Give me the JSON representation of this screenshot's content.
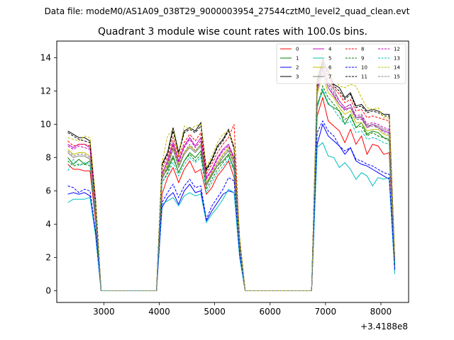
{
  "suptitle": "Data file: modeM0/AS1A09_038T29_9000003954_27544cztM0_level2_quad_clean.evt",
  "chart_data": {
    "type": "line",
    "title": "Quadrant 3 module wise count rates with 100.0s bins.",
    "xlabel": "",
    "ylabel": "",
    "x_offset_label": "+3.4188e8",
    "xlim": [
      2150,
      8500
    ],
    "ylim": [
      -0.7,
      15.0
    ],
    "xticks": [
      3000,
      4000,
      5000,
      6000,
      7000,
      8000
    ],
    "yticks": [
      0,
      2,
      4,
      6,
      8,
      10,
      12,
      14
    ],
    "legend_position": "top-right",
    "grid": false,
    "x": [
      2350,
      2450,
      2550,
      2650,
      2750,
      2850,
      2950,
      3050,
      3150,
      3250,
      3350,
      3450,
      3550,
      3650,
      3750,
      3850,
      3950,
      4050,
      4150,
      4250,
      4350,
      4450,
      4550,
      4650,
      4750,
      4850,
      4950,
      5050,
      5150,
      5250,
      5350,
      5450,
      5550,
      5650,
      5750,
      5850,
      5950,
      6050,
      6150,
      6250,
      6350,
      6450,
      6550,
      6650,
      6750,
      6850,
      6950,
      7050,
      7150,
      7250,
      7350,
      7450,
      7550,
      7650,
      7750,
      7850,
      7950,
      8050,
      8150,
      8250
    ],
    "series": [
      {
        "name": "0",
        "color": "#ff0000",
        "dash": false,
        "values": [
          7.6,
          7.3,
          7.3,
          7.2,
          7.2,
          4.2,
          0,
          0,
          0,
          0,
          0,
          0,
          0,
          0,
          0,
          0,
          0,
          5.8,
          6.8,
          7.4,
          6.5,
          7.3,
          7.8,
          7.1,
          7.3,
          5.8,
          6.2,
          6.9,
          7.3,
          7.8,
          6.8,
          2.6,
          0,
          0,
          0,
          0,
          0,
          0,
          0,
          0,
          0,
          0,
          0,
          0,
          0,
          10.5,
          11.6,
          10.2,
          9.9,
          9.6,
          8.9,
          9.7,
          8.8,
          9.3,
          8.2,
          8.8,
          8.7,
          8.2,
          8.3,
          1.5
        ]
      },
      {
        "name": "1",
        "color": "#008000",
        "dash": false,
        "values": [
          8.0,
          7.6,
          7.9,
          7.6,
          7.8,
          4.6,
          0,
          0,
          0,
          0,
          0,
          0,
          0,
          0,
          0,
          0,
          0,
          6.8,
          7.3,
          8.1,
          7.1,
          7.8,
          8.3,
          8.0,
          8.4,
          6.4,
          7.0,
          7.5,
          7.8,
          8.2,
          7.3,
          2.9,
          0,
          0,
          0,
          0,
          0,
          0,
          0,
          0,
          0,
          0,
          0,
          0,
          0,
          11.2,
          12.0,
          11.2,
          11.0,
          10.8,
          10.0,
          10.6,
          9.8,
          10.1,
          9.4,
          9.6,
          9.5,
          9.2,
          9.1,
          1.6
        ]
      },
      {
        "name": "2",
        "color": "#0000ff",
        "dash": false,
        "values": [
          5.8,
          5.9,
          5.8,
          5.9,
          5.7,
          3.5,
          0,
          0,
          0,
          0,
          0,
          0,
          0,
          0,
          0,
          0,
          0,
          5.0,
          5.6,
          5.9,
          5.2,
          6.0,
          6.4,
          5.9,
          6.0,
          4.2,
          4.8,
          5.3,
          5.8,
          6.0,
          5.9,
          2.1,
          0,
          0,
          0,
          0,
          0,
          0,
          0,
          0,
          0,
          0,
          0,
          0,
          0,
          8.8,
          10.0,
          9.3,
          9.0,
          8.7,
          8.2,
          8.6,
          7.8,
          7.6,
          7.5,
          7.3,
          7.1,
          6.9,
          6.7,
          1.2
        ]
      },
      {
        "name": "3",
        "color": "#000000",
        "dash": false,
        "values": [
          9.6,
          9.4,
          9.2,
          9.2,
          9.0,
          5.5,
          0,
          0,
          0,
          0,
          0,
          0,
          0,
          0,
          0,
          0,
          0,
          7.6,
          8.3,
          9.8,
          8.3,
          9.6,
          9.8,
          9.6,
          10.1,
          7.3,
          7.9,
          8.7,
          9.1,
          9.7,
          8.6,
          3.1,
          0,
          0,
          0,
          0,
          0,
          0,
          0,
          0,
          0,
          0,
          0,
          0,
          0,
          12.6,
          13.9,
          13.2,
          12.4,
          12.2,
          11.6,
          11.9,
          11.1,
          11.2,
          10.8,
          10.9,
          10.8,
          10.6,
          10.6,
          1.9
        ]
      },
      {
        "name": "4",
        "color": "#bf00bf",
        "dash": false,
        "values": [
          8.8,
          8.6,
          8.8,
          8.8,
          8.6,
          5.1,
          0,
          0,
          0,
          0,
          0,
          0,
          0,
          0,
          0,
          0,
          0,
          7.0,
          7.8,
          8.9,
          7.8,
          8.7,
          9.2,
          8.7,
          9.2,
          6.8,
          7.3,
          8.0,
          8.5,
          8.8,
          8.0,
          2.9,
          0,
          0,
          0,
          0,
          0,
          0,
          0,
          0,
          0,
          0,
          0,
          0,
          0,
          12.0,
          13.3,
          12.2,
          11.7,
          11.2,
          10.9,
          11.0,
          10.4,
          10.4,
          9.8,
          10.0,
          9.8,
          9.6,
          9.5,
          1.8
        ]
      },
      {
        "name": "5",
        "color": "#00bfbf",
        "dash": false,
        "values": [
          5.3,
          5.5,
          5.5,
          5.5,
          5.6,
          3.3,
          0,
          0,
          0,
          0,
          0,
          0,
          0,
          0,
          0,
          0,
          0,
          5.2,
          5.4,
          5.6,
          5.1,
          5.7,
          5.9,
          5.7,
          5.8,
          4.1,
          4.6,
          5.0,
          5.5,
          6.1,
          5.9,
          2.0,
          0,
          0,
          0,
          0,
          0,
          0,
          0,
          0,
          0,
          0,
          0,
          0,
          0,
          8.6,
          8.9,
          8.1,
          8.0,
          7.4,
          7.7,
          7.3,
          6.7,
          7.1,
          6.9,
          6.3,
          6.8,
          6.7,
          6.8,
          1.0
        ]
      },
      {
        "name": "6",
        "color": "#bfbf00",
        "dash": false,
        "values": [
          8.5,
          8.2,
          8.3,
          8.3,
          8.1,
          4.9,
          0,
          0,
          0,
          0,
          0,
          0,
          0,
          0,
          0,
          0,
          0,
          6.9,
          7.6,
          8.7,
          7.6,
          8.3,
          8.7,
          8.4,
          8.8,
          6.5,
          7.1,
          7.7,
          8.2,
          8.6,
          7.8,
          2.8,
          0,
          0,
          0,
          0,
          0,
          0,
          0,
          0,
          0,
          0,
          0,
          0,
          0,
          11.8,
          13.0,
          11.9,
          11.6,
          11.0,
          10.6,
          10.8,
          10.1,
          10.1,
          9.6,
          9.7,
          9.7,
          9.4,
          9.3,
          1.8
        ]
      },
      {
        "name": "7",
        "color": "#808080",
        "dash": false,
        "values": [
          8.3,
          8.0,
          8.1,
          8.1,
          7.9,
          4.7,
          0,
          0,
          0,
          0,
          0,
          0,
          0,
          0,
          0,
          0,
          0,
          6.7,
          7.4,
          8.5,
          7.4,
          8.2,
          8.6,
          8.3,
          8.7,
          6.3,
          6.9,
          7.5,
          8.0,
          8.4,
          7.6,
          2.7,
          0,
          0,
          0,
          0,
          0,
          0,
          0,
          0,
          0,
          0,
          0,
          0,
          0,
          12.3,
          13.6,
          12.5,
          12.1,
          11.4,
          11.0,
          11.2,
          10.4,
          10.5,
          9.9,
          10.0,
          9.9,
          9.7,
          9.6,
          1.8
        ]
      },
      {
        "name": "8",
        "color": "#ff0000",
        "dash": true,
        "values": [
          9.0,
          8.7,
          8.8,
          8.8,
          8.7,
          5.2,
          0,
          0,
          0,
          0,
          0,
          0,
          0,
          0,
          0,
          0,
          0,
          7.3,
          8.0,
          9.2,
          8.0,
          8.9,
          9.4,
          9.0,
          9.5,
          7.0,
          7.6,
          8.3,
          8.8,
          9.2,
          10.0,
          3.0,
          0,
          0,
          0,
          0,
          0,
          0,
          0,
          0,
          0,
          0,
          0,
          0,
          0,
          12.4,
          13.8,
          12.8,
          12.2,
          11.8,
          11.3,
          11.5,
          10.8,
          10.9,
          10.4,
          10.5,
          10.4,
          10.3,
          10.2,
          1.9
        ]
      },
      {
        "name": "9",
        "color": "#008000",
        "dash": true,
        "values": [
          7.8,
          7.5,
          7.6,
          7.6,
          7.5,
          4.5,
          0,
          0,
          0,
          0,
          0,
          0,
          0,
          0,
          0,
          0,
          0,
          6.5,
          7.1,
          8.0,
          7.1,
          7.8,
          8.2,
          7.8,
          8.2,
          6.1,
          6.7,
          7.3,
          7.7,
          8.1,
          7.4,
          2.6,
          0,
          0,
          0,
          0,
          0,
          0,
          0,
          0,
          0,
          0,
          0,
          0,
          0,
          11.0,
          12.3,
          11.6,
          11.2,
          10.8,
          10.3,
          10.5,
          9.8,
          9.9,
          9.3,
          9.5,
          9.3,
          9.2,
          9.0,
          1.7
        ]
      },
      {
        "name": "10",
        "color": "#0000ff",
        "dash": true,
        "values": [
          6.3,
          6.2,
          5.9,
          6.1,
          6.0,
          3.6,
          0,
          0,
          0,
          0,
          0,
          0,
          0,
          0,
          0,
          0,
          0,
          5.3,
          5.9,
          6.4,
          5.6,
          6.3,
          6.7,
          6.2,
          6.3,
          4.3,
          5.1,
          5.6,
          6.1,
          6.8,
          6.6,
          2.2,
          0,
          0,
          0,
          0,
          0,
          0,
          0,
          0,
          0,
          0,
          0,
          0,
          0,
          9.5,
          10.2,
          9.6,
          9.3,
          8.7,
          8.4,
          8.6,
          7.9,
          7.8,
          7.6,
          7.5,
          7.3,
          7.1,
          7.0,
          1.3
        ]
      },
      {
        "name": "11",
        "color": "#000000",
        "dash": true,
        "values": [
          9.5,
          9.3,
          9.1,
          9.0,
          8.9,
          5.4,
          0,
          0,
          0,
          0,
          0,
          0,
          0,
          0,
          0,
          0,
          0,
          7.5,
          8.2,
          9.6,
          8.2,
          9.5,
          9.7,
          9.5,
          9.9,
          7.2,
          7.8,
          8.6,
          9.0,
          9.6,
          8.5,
          3.1,
          0,
          0,
          0,
          0,
          0,
          0,
          0,
          0,
          0,
          0,
          0,
          0,
          0,
          12.5,
          13.7,
          13.0,
          12.3,
          12.0,
          11.5,
          11.8,
          11.0,
          11.1,
          10.7,
          10.8,
          10.7,
          10.5,
          10.5,
          1.9
        ]
      },
      {
        "name": "12",
        "color": "#bf00bf",
        "dash": true,
        "values": [
          8.7,
          8.5,
          8.7,
          8.6,
          8.5,
          5.0,
          0,
          0,
          0,
          0,
          0,
          0,
          0,
          0,
          0,
          0,
          0,
          7.1,
          7.7,
          8.8,
          7.7,
          8.6,
          9.1,
          8.6,
          9.0,
          6.7,
          7.2,
          7.9,
          8.4,
          8.7,
          7.9,
          2.8,
          0,
          0,
          0,
          0,
          0,
          0,
          0,
          0,
          0,
          0,
          0,
          0,
          0,
          12.2,
          13.4,
          12.4,
          11.9,
          11.4,
          11.0,
          11.2,
          10.5,
          10.6,
          10.0,
          10.1,
          10.0,
          9.8,
          9.7,
          1.8
        ]
      },
      {
        "name": "13",
        "color": "#00bfbf",
        "dash": true,
        "values": [
          7.2,
          7.9,
          7.5,
          7.7,
          7.6,
          4.5,
          0,
          0,
          0,
          0,
          0,
          0,
          0,
          0,
          0,
          0,
          0,
          6.5,
          7.0,
          7.7,
          6.9,
          7.6,
          8.0,
          7.7,
          8.0,
          5.9,
          6.5,
          7.1,
          7.5,
          7.9,
          7.2,
          2.6,
          0,
          0,
          0,
          0,
          0,
          0,
          0,
          0,
          0,
          0,
          0,
          0,
          0,
          11.0,
          12.1,
          11.3,
          10.9,
          10.4,
          10.0,
          10.2,
          9.5,
          9.6,
          9.1,
          9.2,
          9.1,
          8.9,
          8.8,
          1.6
        ]
      },
      {
        "name": "14",
        "color": "#bfbf00",
        "dash": true,
        "values": [
          9.2,
          9.1,
          9.0,
          9.3,
          9.2,
          5.6,
          0,
          0,
          0,
          0,
          0,
          0,
          0,
          0,
          0,
          0,
          0,
          7.7,
          9.3,
          9.7,
          8.1,
          9.9,
          9.7,
          9.9,
          10.0,
          7.4,
          8.1,
          8.9,
          9.4,
          9.6,
          8.7,
          3.2,
          0,
          0,
          0,
          0,
          0,
          0,
          0,
          0,
          0,
          0,
          0,
          0,
          0,
          13.1,
          14.3,
          13.5,
          12.8,
          12.3,
          12.2,
          12.4,
          12.3,
          11.6,
          11.0,
          10.9,
          11.0,
          10.4,
          10.4,
          2.0
        ]
      },
      {
        "name": "15",
        "color": "#808080",
        "dash": true,
        "values": [
          8.4,
          8.1,
          8.2,
          8.2,
          8.0,
          4.8,
          0,
          0,
          0,
          0,
          0,
          0,
          0,
          0,
          0,
          0,
          0,
          6.8,
          7.5,
          8.6,
          7.5,
          8.3,
          8.8,
          8.4,
          8.8,
          6.4,
          7.0,
          7.6,
          8.1,
          8.5,
          7.7,
          2.7,
          0,
          0,
          0,
          0,
          0,
          0,
          0,
          0,
          0,
          0,
          0,
          0,
          0,
          12.1,
          13.2,
          12.2,
          11.8,
          11.2,
          10.8,
          11.0,
          10.3,
          10.3,
          9.8,
          9.9,
          9.8,
          9.5,
          9.4,
          1.8
        ]
      }
    ]
  }
}
